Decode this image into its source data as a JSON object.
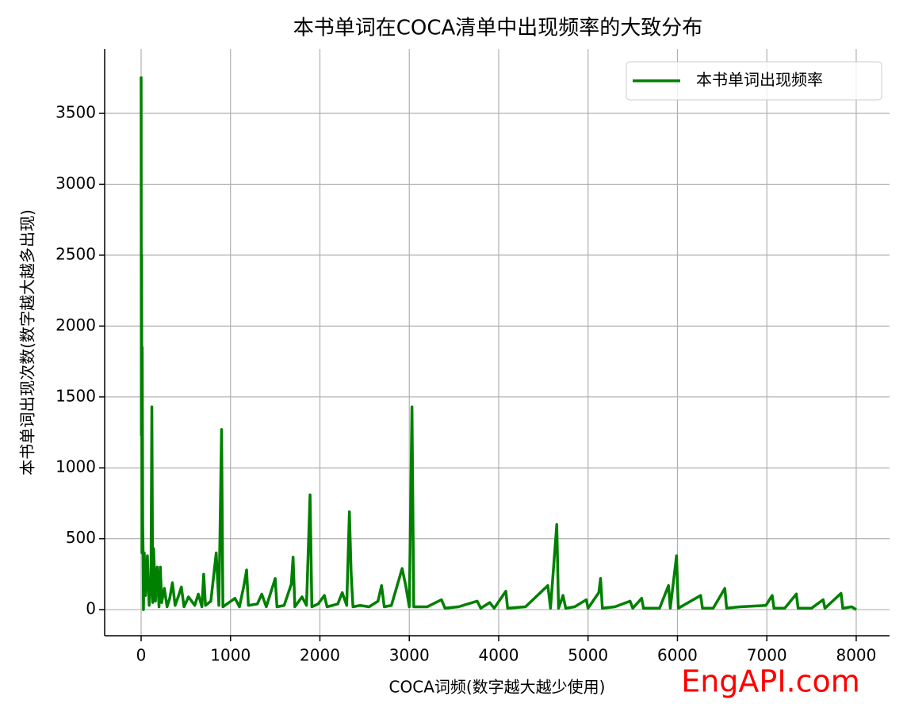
{
  "chart_data": {
    "type": "line",
    "title": "本书单词在COCA清单中出现频率的大致分布",
    "x_label": "COCA词频(数字越大越少使用)",
    "y_label": "本书单词出现次数(数字越大越多出现)",
    "watermark": "EngAPI.com",
    "x": [
      0,
      3,
      6,
      9,
      12,
      15,
      18,
      22,
      26,
      35,
      50,
      70,
      90,
      110,
      120,
      130,
      140,
      160,
      180,
      200,
      215,
      230,
      260,
      290,
      320,
      350,
      380,
      420,
      450,
      480,
      530,
      600,
      640,
      680,
      700,
      720,
      780,
      840,
      870,
      900,
      915,
      960,
      1050,
      1100,
      1150,
      1180,
      1200,
      1300,
      1350,
      1400,
      1500,
      1520,
      1600,
      1680,
      1700,
      1720,
      1800,
      1850,
      1890,
      1910,
      1980,
      2050,
      2080,
      2200,
      2250,
      2300,
      2330,
      2350,
      2370,
      2450,
      2550,
      2650,
      2690,
      2720,
      2800,
      2920,
      2960,
      3000,
      3030,
      3050,
      3200,
      3360,
      3400,
      3550,
      3760,
      3800,
      3900,
      3950,
      4080,
      4100,
      4300,
      4550,
      4580,
      4650,
      4670,
      4720,
      4750,
      4850,
      4980,
      5000,
      5120,
      5140,
      5160,
      5300,
      5470,
      5500,
      5600,
      5620,
      5800,
      5900,
      5920,
      5990,
      6010,
      6260,
      6280,
      6400,
      6530,
      6550,
      6700,
      6990,
      7060,
      7080,
      7200,
      7330,
      7350,
      7500,
      7630,
      7650,
      7830,
      7850,
      7950,
      8000
    ],
    "series": [
      {
        "name": "本书单词出现频率",
        "color": "#008000",
        "values": [
          3760,
          1230,
          2500,
          400,
          1850,
          1250,
          600,
          420,
          0,
          400,
          100,
          380,
          30,
          200,
          1430,
          50,
          430,
          60,
          300,
          20,
          300,
          50,
          150,
          20,
          80,
          190,
          30,
          100,
          160,
          20,
          90,
          30,
          110,
          20,
          250,
          30,
          60,
          400,
          30,
          1270,
          20,
          40,
          80,
          20,
          170,
          280,
          30,
          40,
          110,
          20,
          220,
          20,
          30,
          180,
          370,
          20,
          90,
          30,
          810,
          20,
          40,
          100,
          20,
          40,
          120,
          30,
          690,
          250,
          20,
          30,
          20,
          60,
          170,
          20,
          30,
          290,
          170,
          20,
          1430,
          20,
          20,
          70,
          10,
          20,
          60,
          10,
          50,
          10,
          130,
          10,
          20,
          170,
          10,
          600,
          10,
          100,
          10,
          20,
          70,
          10,
          120,
          220,
          10,
          20,
          60,
          10,
          80,
          10,
          10,
          170,
          10,
          380,
          10,
          100,
          10,
          10,
          150,
          10,
          20,
          30,
          100,
          10,
          10,
          110,
          10,
          10,
          70,
          10,
          115,
          10,
          20,
          0
        ]
      }
    ],
    "xlim": [
      -408,
      8373
    ],
    "ylim": [
      -184,
      3953
    ],
    "xticks": [
      0,
      1000,
      2000,
      3000,
      4000,
      5000,
      6000,
      7000,
      8000
    ],
    "yticks": [
      0,
      500,
      1000,
      1500,
      2000,
      2500,
      3000,
      3500
    ],
    "grid": true,
    "legend": "upper right"
  }
}
